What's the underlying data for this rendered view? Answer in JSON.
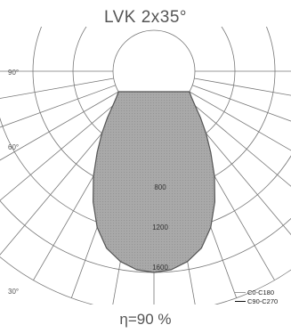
{
  "title": "LVK 2x35°",
  "efficiency": "η=90 %",
  "chart_data": {
    "type": "polar",
    "unit_note": "",
    "ring_values": [
      400,
      800,
      1200,
      1600,
      2000
    ],
    "ring_labels": [
      "800",
      "1200",
      "1600"
    ],
    "angle_labels": [
      "90°",
      "60°",
      "30°"
    ],
    "gamma_step_deg": 10,
    "legend": [
      "C0-C180",
      "C90-C270"
    ],
    "series": [
      {
        "name": "C0-C180",
        "curve": [
          {
            "angle": 0,
            "value": 1600
          },
          {
            "angle": 5,
            "value": 1580
          },
          {
            "angle": 10,
            "value": 1520
          },
          {
            "angle": 15,
            "value": 1420
          },
          {
            "angle": 20,
            "value": 1250
          },
          {
            "angle": 25,
            "value": 1030
          },
          {
            "angle": 30,
            "value": 800
          },
          {
            "angle": 35,
            "value": 580
          },
          {
            "angle": 40,
            "value": 400
          },
          {
            "angle": 45,
            "value": 250
          },
          {
            "angle": 50,
            "value": 130
          },
          {
            "angle": 55,
            "value": 50
          },
          {
            "angle": 60,
            "value": 0
          }
        ]
      }
    ]
  }
}
